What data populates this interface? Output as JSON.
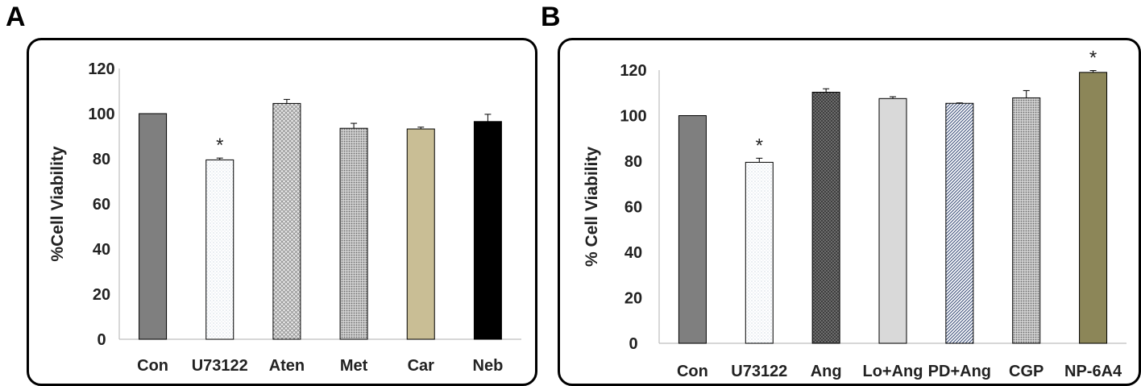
{
  "panels": [
    {
      "letter": "A",
      "chart_data": {
        "type": "bar",
        "title": "",
        "xlabel": "",
        "ylabel": "%Cell Viability",
        "ylim": [
          0,
          120
        ],
        "yticks": [
          0,
          20,
          40,
          60,
          80,
          100,
          120
        ],
        "categories": [
          "Con",
          "U73122",
          "Aten",
          "Met",
          "Car",
          "Neb"
        ],
        "values": [
          100,
          79.5,
          104.5,
          93.5,
          93.2,
          96.5
        ],
        "errors": [
          0,
          0.8,
          1.8,
          2.2,
          0.8,
          3.2
        ],
        "significance": [
          "",
          "*",
          "",
          "",
          "",
          ""
        ],
        "bar_styles": [
          "solid-gray",
          "dots-light",
          "crosshatch-light",
          "dense-dots",
          "solid-tan",
          "solid-black"
        ],
        "colors": {
          "solid-gray": "#7f7f7f",
          "solid-tan": "#c9be95",
          "solid-black": "#000000",
          "axis": "#bfbfbf"
        }
      }
    },
    {
      "letter": "B",
      "chart_data": {
        "type": "bar",
        "title": "",
        "xlabel": "",
        "ylabel": "% Cell Viability",
        "ylim": [
          0,
          120
        ],
        "yticks": [
          0,
          20,
          40,
          60,
          80,
          100,
          120
        ],
        "categories": [
          "Con",
          "U73122",
          "Ang",
          "Lo+Ang",
          "PD+Ang",
          "CGP",
          "NP-6A4"
        ],
        "values": [
          100,
          79.5,
          110.3,
          107.5,
          105.4,
          107.8,
          119
        ],
        "errors": [
          0,
          1.8,
          1.5,
          0.8,
          0.2,
          3.2,
          0.8
        ],
        "significance": [
          "",
          "*",
          "",
          "",
          "",
          "",
          "*"
        ],
        "bar_styles": [
          "solid-gray",
          "dots-light",
          "dark-mesh",
          "solid-lightgray",
          "diag-navy",
          "dense-dots",
          "solid-olive"
        ],
        "colors": {
          "solid-gray": "#7f7f7f",
          "solid-lightgray": "#d9d9d9",
          "solid-olive": "#8c8658",
          "axis": "#bfbfbf"
        }
      }
    }
  ]
}
